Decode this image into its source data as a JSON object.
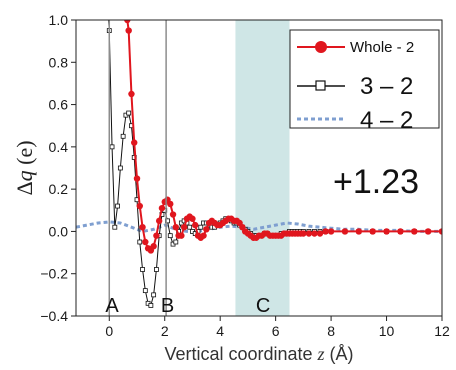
{
  "chart_data": {
    "type": "line",
    "xlabel_prefix": "Vertical coordinate ",
    "xlabel_var": "z",
    "xlabel_suffix": " (Å)",
    "ylabel_main": "Δ",
    "ylabel_var": "q",
    "ylabel_unit": " (e)",
    "xlim": [
      -1.2,
      12
    ],
    "ylim": [
      -0.4,
      1.0
    ],
    "x_ticks": [
      0,
      2,
      4,
      6,
      8,
      10,
      12
    ],
    "x_tick_labels": [
      "0",
      "2",
      "4",
      "6",
      "8",
      "10",
      "12"
    ],
    "y_ticks": [
      -0.4,
      -0.2,
      0.0,
      0.2,
      0.4,
      0.6,
      0.8,
      1.0
    ],
    "y_tick_labels": [
      "−0.4",
      "−0.2",
      "0.0",
      "0.2",
      "0.4",
      "0.6",
      "0.8",
      "1.0"
    ],
    "grid": false,
    "legend_position": "top-right",
    "annotation": "+1.23",
    "region_labels": [
      "A",
      "B",
      "C"
    ],
    "markers_at": [
      0.0,
      2.05
    ],
    "shaded_region": [
      4.55,
      6.5
    ],
    "colors": {
      "whole": "#e0161e",
      "three": "#111111",
      "four": "#7f9fd0",
      "shade": "#cfe6e6",
      "marker_line": "#8c8c8c"
    },
    "series": [
      {
        "name": "Whole - 2",
        "x": [
          0.65,
          0.7,
          0.8,
          0.9,
          1.0,
          1.1,
          1.2,
          1.3,
          1.4,
          1.5,
          1.6,
          1.7,
          1.8,
          1.9,
          2.0,
          2.1,
          2.2,
          2.3,
          2.4,
          2.5,
          2.6,
          2.7,
          2.8,
          2.9,
          3.0,
          3.1,
          3.2,
          3.3,
          3.4,
          3.5,
          3.6,
          3.7,
          3.8,
          3.9,
          4.0,
          4.1,
          4.2,
          4.3,
          4.4,
          4.5,
          4.6,
          4.7,
          4.8,
          4.9,
          5.0,
          5.1,
          5.2,
          5.3,
          5.4,
          5.5,
          5.6,
          5.7,
          5.8,
          5.9,
          6.0,
          6.1,
          6.2,
          6.3,
          6.4,
          6.5,
          6.6,
          6.7,
          6.8,
          6.9,
          7.0,
          7.2,
          7.4,
          7.6,
          7.8,
          8.0,
          8.5,
          9.0,
          9.5,
          10.0,
          10.5,
          11.0,
          11.5,
          12.0
        ],
        "y": [
          1.0,
          0.95,
          0.65,
          0.42,
          0.25,
          0.12,
          0.02,
          -0.05,
          -0.08,
          -0.09,
          -0.07,
          -0.02,
          0.05,
          0.11,
          0.14,
          0.15,
          0.13,
          0.08,
          0.02,
          -0.02,
          -0.02,
          0.02,
          0.06,
          0.07,
          0.06,
          0.03,
          -0.02,
          -0.03,
          -0.02,
          0.01,
          0.04,
          0.05,
          0.04,
          0.03,
          0.03,
          0.04,
          0.05,
          0.06,
          0.06,
          0.05,
          0.05,
          0.04,
          0.02,
          0.0,
          -0.01,
          -0.02,
          -0.03,
          -0.03,
          -0.02,
          -0.02,
          -0.01,
          -0.01,
          -0.02,
          -0.02,
          -0.02,
          -0.02,
          -0.02,
          -0.01,
          -0.01,
          -0.01,
          -0.01,
          -0.01,
          -0.01,
          -0.01,
          -0.01,
          -0.01,
          -0.01,
          -0.01,
          0.0,
          0.0,
          0.0,
          0.0,
          0.0,
          0.0,
          0.0,
          0.0,
          0.0,
          0.0
        ]
      },
      {
        "name": "3 – 2",
        "x": [
          -0.05,
          0.0,
          0.1,
          0.2,
          0.3,
          0.4,
          0.5,
          0.6,
          0.7,
          0.8,
          0.9,
          1.0,
          1.1,
          1.2,
          1.3,
          1.4,
          1.5,
          1.6,
          1.7,
          1.8,
          1.9,
          2.0,
          2.1,
          2.2,
          2.3,
          2.4,
          2.5,
          2.6,
          2.7,
          2.8,
          2.9,
          3.0,
          3.1,
          3.2,
          3.3,
          3.4,
          3.5,
          3.6,
          3.7,
          3.8,
          3.9,
          4.0,
          4.1,
          4.2,
          4.3,
          4.4,
          4.5,
          4.6,
          4.7,
          4.8,
          4.9,
          5.0,
          5.1,
          5.2,
          5.3,
          5.4,
          5.5,
          5.6,
          5.7,
          5.8,
          5.9,
          6.0,
          6.1,
          6.2,
          6.3,
          6.4,
          6.5,
          6.6,
          6.7,
          6.8,
          6.9,
          7.0,
          7.2,
          7.4,
          7.6,
          7.8,
          8.0,
          8.5,
          9.0,
          9.5,
          10.0,
          10.5,
          11.0,
          11.5,
          12.0
        ],
        "y": [
          1.05,
          0.95,
          0.4,
          0.02,
          0.12,
          0.3,
          0.45,
          0.55,
          0.56,
          0.5,
          0.35,
          0.15,
          -0.05,
          -0.18,
          -0.28,
          -0.34,
          -0.35,
          -0.3,
          -0.18,
          -0.02,
          0.08,
          0.1,
          0.05,
          -0.02,
          -0.06,
          -0.05,
          0.0,
          0.04,
          0.05,
          0.04,
          0.02,
          0.0,
          -0.01,
          0.0,
          0.02,
          0.04,
          0.04,
          0.03,
          0.02,
          0.02,
          0.03,
          0.04,
          0.05,
          0.06,
          0.06,
          0.05,
          0.04,
          0.04,
          0.03,
          0.02,
          0.01,
          0.0,
          -0.01,
          -0.02,
          -0.02,
          -0.02,
          -0.02,
          -0.01,
          -0.01,
          -0.02,
          -0.02,
          -0.02,
          -0.02,
          -0.01,
          -0.01,
          -0.01,
          0.0,
          0.0,
          0.0,
          0.0,
          0.0,
          0.0,
          0.0,
          0.0,
          0.0,
          0.0,
          0.0,
          0.0,
          0.0,
          0.0,
          0.0,
          0.0,
          0.0,
          0.0,
          0.0
        ]
      },
      {
        "name": "4 – 2",
        "x": [
          -1.2,
          -0.8,
          -0.4,
          0.0,
          0.4,
          0.8,
          1.2,
          1.6,
          2.0,
          2.4,
          2.8,
          3.2,
          3.6,
          4.0,
          4.4,
          4.8,
          5.2,
          5.6,
          6.0,
          6.4,
          6.8,
          7.2,
          7.6,
          8.0,
          8.5,
          9.0,
          9.5,
          10.0,
          10.5,
          11.0,
          11.5,
          12.0
        ],
        "y": [
          0.02,
          0.03,
          0.04,
          0.045,
          0.04,
          0.02,
          0.0,
          0.01,
          0.03,
          0.01,
          0.0,
          0.0,
          0.01,
          0.02,
          0.025,
          0.02,
          0.01,
          0.02,
          0.03,
          0.04,
          0.035,
          0.025,
          0.02,
          0.015,
          0.01,
          0.01,
          0.005,
          0.005,
          0.005,
          0.0,
          0.0,
          0.0
        ]
      }
    ]
  }
}
